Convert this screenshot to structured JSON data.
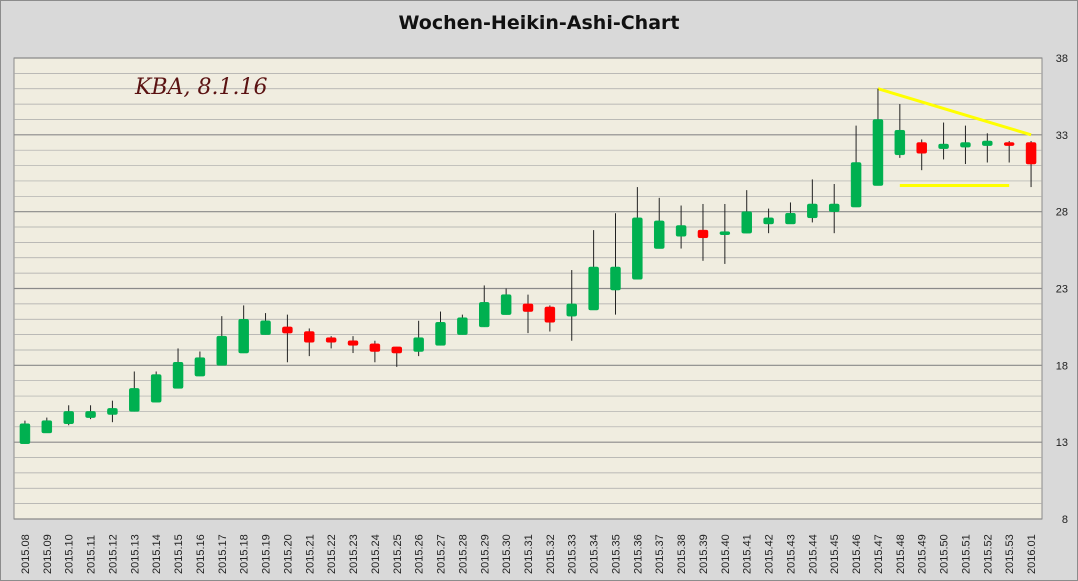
{
  "chart_data": {
    "type": "candlestick",
    "title": "Wochen-Heikin-Ashi-Chart",
    "annotation": "KBA, 8.1.16",
    "ylim": [
      8,
      38
    ],
    "y_ticks": [
      8,
      13,
      18,
      23,
      28,
      33,
      38
    ],
    "grid": true,
    "colors": {
      "up": "#00b050",
      "down": "#ff0000",
      "trendline": "#ffff00",
      "background": "#f0ede0",
      "grid": "#a8a8a8"
    },
    "categories": [
      "2015.08",
      "2015.09",
      "2015.10",
      "2015.11",
      "2015.12",
      "2015.13",
      "2015.14",
      "2015.15",
      "2015.16",
      "2015.17",
      "2015.18",
      "2015.19",
      "2015.20",
      "2015.21",
      "2015.22",
      "2015.23",
      "2015.24",
      "2015.25",
      "2015.26",
      "2015.27",
      "2015.28",
      "2015.29",
      "2015.30",
      "2015.31",
      "2015.32",
      "2015.33",
      "2015.34",
      "2015.35",
      "2015.36",
      "2015.37",
      "2015.38",
      "2015.39",
      "2015.40",
      "2015.41",
      "2015.42",
      "2015.43",
      "2015.44",
      "2015.45",
      "2015.46",
      "2015.47",
      "2015.48",
      "2015.49",
      "2015.50",
      "2015.51",
      "2015.52",
      "2015.53",
      "2016.01"
    ],
    "candles": [
      {
        "open": 12.9,
        "close": 14.2,
        "high": 14.4,
        "low": 12.9
      },
      {
        "open": 13.6,
        "close": 14.4,
        "high": 14.6,
        "low": 13.6
      },
      {
        "open": 14.2,
        "close": 15.0,
        "high": 15.4,
        "low": 14.1
      },
      {
        "open": 14.6,
        "close": 15.0,
        "high": 15.4,
        "low": 14.5
      },
      {
        "open": 14.8,
        "close": 15.2,
        "high": 15.7,
        "low": 14.3
      },
      {
        "open": 15.0,
        "close": 16.5,
        "high": 17.6,
        "low": 15.0
      },
      {
        "open": 15.6,
        "close": 17.4,
        "high": 17.6,
        "low": 15.6
      },
      {
        "open": 16.5,
        "close": 18.2,
        "high": 19.1,
        "low": 16.5
      },
      {
        "open": 17.3,
        "close": 18.5,
        "high": 18.9,
        "low": 17.3
      },
      {
        "open": 18.0,
        "close": 19.9,
        "high": 21.2,
        "low": 18.0
      },
      {
        "open": 18.8,
        "close": 21.0,
        "high": 21.9,
        "low": 18.8
      },
      {
        "open": 20.0,
        "close": 20.9,
        "high": 21.4,
        "low": 20.0
      },
      {
        "open": 20.5,
        "close": 20.1,
        "high": 21.3,
        "low": 18.2
      },
      {
        "open": 20.2,
        "close": 19.5,
        "high": 20.4,
        "low": 18.6
      },
      {
        "open": 19.8,
        "close": 19.5,
        "high": 19.9,
        "low": 19.1
      },
      {
        "open": 19.6,
        "close": 19.3,
        "high": 19.9,
        "low": 18.8
      },
      {
        "open": 19.4,
        "close": 18.9,
        "high": 19.6,
        "low": 18.2
      },
      {
        "open": 19.2,
        "close": 18.8,
        "high": 19.2,
        "low": 17.9
      },
      {
        "open": 18.9,
        "close": 19.8,
        "high": 20.9,
        "low": 18.6
      },
      {
        "open": 19.3,
        "close": 20.8,
        "high": 21.5,
        "low": 19.3
      },
      {
        "open": 20.0,
        "close": 21.1,
        "high": 21.3,
        "low": 20.0
      },
      {
        "open": 20.5,
        "close": 22.1,
        "high": 23.2,
        "low": 20.5
      },
      {
        "open": 21.3,
        "close": 22.6,
        "high": 23.0,
        "low": 21.3
      },
      {
        "open": 22.0,
        "close": 21.5,
        "high": 22.6,
        "low": 20.1
      },
      {
        "open": 21.8,
        "close": 20.8,
        "high": 21.9,
        "low": 20.2
      },
      {
        "open": 21.2,
        "close": 22.0,
        "high": 24.2,
        "low": 19.6
      },
      {
        "open": 21.6,
        "close": 24.4,
        "high": 26.8,
        "low": 21.6
      },
      {
        "open": 22.9,
        "close": 24.4,
        "high": 27.9,
        "low": 21.3
      },
      {
        "open": 23.6,
        "close": 27.6,
        "high": 29.6,
        "low": 23.6
      },
      {
        "open": 25.6,
        "close": 27.4,
        "high": 28.9,
        "low": 25.6
      },
      {
        "open": 26.4,
        "close": 27.1,
        "high": 28.4,
        "low": 25.6
      },
      {
        "open": 26.8,
        "close": 26.3,
        "high": 28.5,
        "low": 24.8
      },
      {
        "open": 26.5,
        "close": 26.7,
        "high": 28.5,
        "low": 24.6
      },
      {
        "open": 26.6,
        "close": 28.0,
        "high": 29.4,
        "low": 26.6
      },
      {
        "open": 27.2,
        "close": 27.6,
        "high": 28.2,
        "low": 26.6
      },
      {
        "open": 27.2,
        "close": 27.9,
        "high": 28.6,
        "low": 27.2
      },
      {
        "open": 27.6,
        "close": 28.5,
        "high": 30.1,
        "low": 27.3
      },
      {
        "open": 28.0,
        "close": 28.5,
        "high": 29.8,
        "low": 26.6
      },
      {
        "open": 28.3,
        "close": 31.2,
        "high": 33.6,
        "low": 28.3
      },
      {
        "open": 29.7,
        "close": 34.0,
        "high": 36.0,
        "low": 29.7
      },
      {
        "open": 31.7,
        "close": 33.3,
        "high": 35.0,
        "low": 31.5
      },
      {
        "open": 32.5,
        "close": 31.8,
        "high": 32.7,
        "low": 30.7
      },
      {
        "open": 32.1,
        "close": 32.4,
        "high": 33.8,
        "low": 31.4
      },
      {
        "open": 32.2,
        "close": 32.5,
        "high": 33.6,
        "low": 31.1
      },
      {
        "open": 32.3,
        "close": 32.6,
        "high": 33.1,
        "low": 31.2
      },
      {
        "open": 32.5,
        "close": 32.3,
        "high": 32.6,
        "low": 31.2
      },
      {
        "open": 32.5,
        "close": 31.1,
        "high": 32.6,
        "low": 29.6
      }
    ],
    "trendlines": [
      {
        "from": {
          "x": "2015.47",
          "y": 36.0
        },
        "to": {
          "x": "2016.01",
          "y": 33.0
        }
      },
      {
        "from": {
          "x": "2015.48",
          "y": 29.7
        },
        "to": {
          "x": "2015.53",
          "y": 29.7
        }
      }
    ]
  }
}
